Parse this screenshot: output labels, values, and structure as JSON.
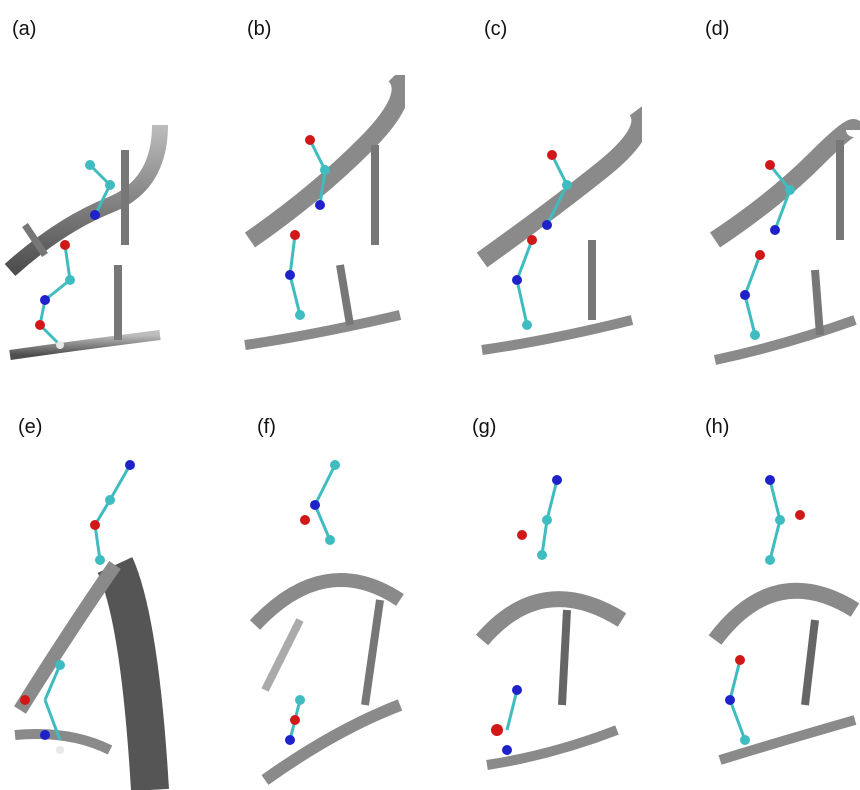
{
  "panels": [
    {
      "label": "(a)"
    },
    {
      "label": "(b)"
    },
    {
      "label": "(c)"
    },
    {
      "label": "(d)"
    },
    {
      "label": "(e)"
    },
    {
      "label": "(f)"
    },
    {
      "label": "(g)"
    },
    {
      "label": "(h)"
    }
  ],
  "colors": {
    "ribbon_dark": "#5a5a5a",
    "ribbon_light": "#b8b8b8",
    "carbon": "#3fbcc0",
    "nitrogen": "#1e22c8",
    "oxygen": "#d01818",
    "hydrogen": "#e8e8e8"
  }
}
